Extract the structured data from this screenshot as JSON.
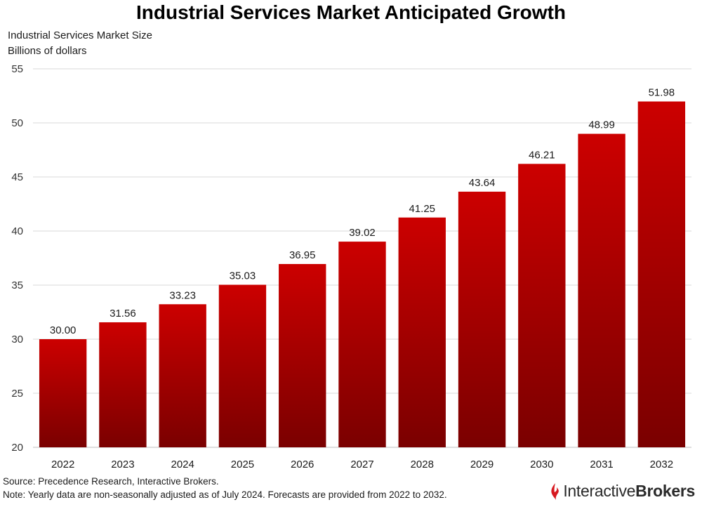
{
  "chart_data": {
    "type": "bar",
    "title": "Industrial Services Market Anticipated Growth",
    "ylabel_lines": [
      "Industrial Services Market Size",
      "Billions of dollars"
    ],
    "xlabel": "",
    "categories": [
      "2022",
      "2023",
      "2024",
      "2025",
      "2026",
      "2027",
      "2028",
      "2029",
      "2030",
      "2031",
      "2032"
    ],
    "values": [
      30.0,
      31.56,
      33.23,
      35.03,
      36.95,
      39.02,
      41.25,
      43.64,
      46.21,
      48.99,
      51.98
    ],
    "value_labels": [
      "30.00",
      "31.56",
      "33.23",
      "35.03",
      "36.95",
      "39.02",
      "41.25",
      "43.64",
      "46.21",
      "48.99",
      "51.98"
    ],
    "ylim": [
      20,
      55
    ],
    "yticks": [
      20,
      25,
      30,
      35,
      40,
      45,
      50,
      55
    ],
    "grid": true,
    "legend": "none",
    "bar_color_top": "#cc0000",
    "bar_color_bottom": "#7a0000"
  },
  "footer": {
    "source": "Source: Precedence Research, Interactive Brokers.",
    "note": "Note: Yearly data are non-seasonally adjusted as of July 2024. Forecasts are provided from 2022 to 2032."
  },
  "logo": {
    "part1": "Interactive",
    "part2": "Brokers",
    "icon": "ib-flame-icon",
    "color": "#d71920"
  }
}
